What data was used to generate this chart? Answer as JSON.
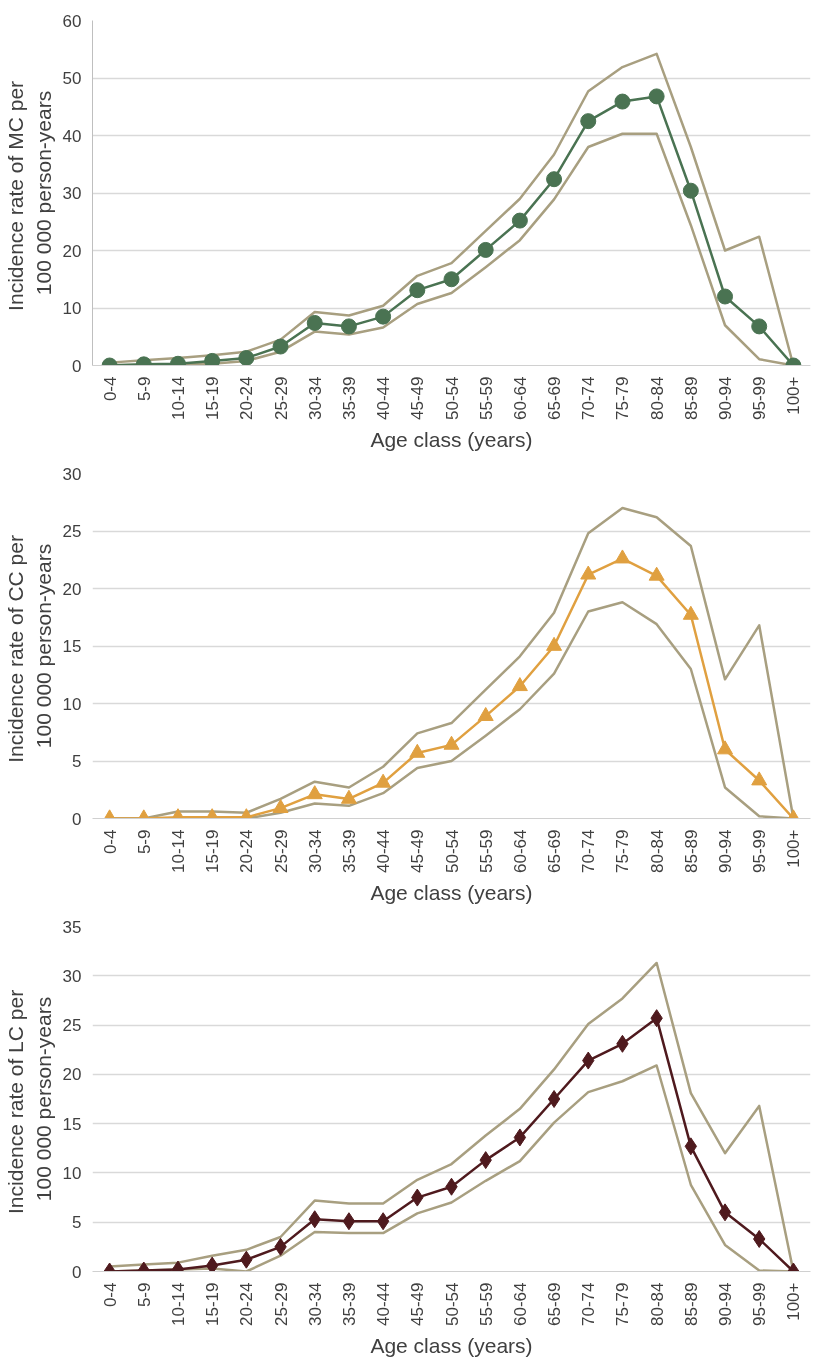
{
  "chart_data": [
    {
      "type": "line",
      "xlabel": "Age class (years)",
      "ylabel": "Incidence rate of MC  per\n100 000 person-years",
      "categories": [
        "0-4",
        "5-9",
        "10-14",
        "15-19",
        "20-24",
        "25-29",
        "30-34",
        "35-39",
        "40-44",
        "45-49",
        "50-54",
        "55-59",
        "60-64",
        "65-69",
        "70-74",
        "75-79",
        "80-84",
        "85-89",
        "90-94",
        "95-99",
        "100+"
      ],
      "ylim": [
        0,
        60
      ],
      "yticks": [
        0,
        10,
        20,
        30,
        40,
        50,
        60
      ],
      "grid": "y",
      "series": [
        {
          "color": "#a89f80",
          "marker": "none",
          "values": [
            0.5,
            0.9,
            1.3,
            1.8,
            2.4,
            4.5,
            9.3,
            8.7,
            10.4,
            15.6,
            17.8,
            23.4,
            29.0,
            36.7,
            47.7,
            51.9,
            54.2,
            38.0,
            20.0,
            22.4,
            0
          ]
        },
        {
          "color": "#a89f80",
          "marker": "none",
          "values": [
            0.1,
            0.1,
            0.2,
            0.3,
            0.8,
            2.4,
            5.9,
            5.4,
            6.6,
            10.7,
            12.6,
            17.1,
            21.8,
            28.9,
            38.0,
            40.3,
            40.3,
            24.4,
            7.0,
            1.1,
            0
          ]
        },
        {
          "color": "#4a7352",
          "marker": "circle",
          "values": [
            0,
            0.2,
            0.3,
            0.8,
            1.3,
            3.3,
            7.4,
            6.8,
            8.5,
            13.1,
            15.0,
            20.1,
            25.2,
            32.4,
            42.5,
            45.9,
            46.8,
            30.4,
            12.0,
            6.8,
            0
          ]
        }
      ]
    },
    {
      "type": "line",
      "xlabel": "Age class (years)",
      "ylabel": "Incidence rate of CC  per\n100 000 person-years",
      "categories": [
        "0-4",
        "5-9",
        "10-14",
        "15-19",
        "20-24",
        "25-29",
        "30-34",
        "35-39",
        "40-44",
        "45-49",
        "50-54",
        "55-59",
        "60-64",
        "65-69",
        "70-74",
        "75-79",
        "80-84",
        "85-89",
        "90-94",
        "95-99",
        "100+"
      ],
      "ylim": [
        0,
        30
      ],
      "yticks": [
        0,
        5,
        10,
        15,
        20,
        25,
        30
      ],
      "grid": "y",
      "series": [
        {
          "color": "#a89f80",
          "marker": "none",
          "values": [
            0,
            0,
            0.6,
            0.6,
            0.5,
            1.7,
            3.2,
            2.7,
            4.5,
            7.4,
            8.3,
            11.2,
            14.1,
            17.9,
            24.8,
            27.0,
            26.2,
            23.7,
            12.1,
            16.8,
            0
          ]
        },
        {
          "color": "#a89f80",
          "marker": "none",
          "values": [
            0,
            0,
            0,
            0,
            0,
            0.5,
            1.3,
            1.1,
            2.2,
            4.4,
            5.0,
            7.2,
            9.5,
            12.6,
            18.0,
            18.8,
            16.9,
            13.0,
            2.7,
            0.2,
            0
          ]
        },
        {
          "color": "#e0a040",
          "marker": "triangle",
          "values": [
            0,
            0,
            0.1,
            0.1,
            0.1,
            0.9,
            2.1,
            1.7,
            3.1,
            5.7,
            6.4,
            8.9,
            11.5,
            15.0,
            21.2,
            22.6,
            21.1,
            17.7,
            6.0,
            3.3,
            0
          ]
        }
      ]
    },
    {
      "type": "line",
      "xlabel": "Age class (years)",
      "ylabel": "Incidence rate of LC  per\n100 000 person-years",
      "categories": [
        "0-4",
        "5-9",
        "10-14",
        "15-19",
        "20-24",
        "25-29",
        "30-34",
        "35-39",
        "40-44",
        "45-49",
        "50-54",
        "55-59",
        "60-64",
        "65-69",
        "70-74",
        "75-79",
        "80-84",
        "85-89",
        "90-94",
        "95-99",
        "100+"
      ],
      "ylim": [
        0,
        35
      ],
      "yticks": [
        0,
        5,
        10,
        15,
        20,
        25,
        30,
        35
      ],
      "grid": "y",
      "series": [
        {
          "color": "#a89f80",
          "marker": "none",
          "values": [
            0.5,
            0.7,
            0.9,
            1.6,
            2.2,
            3.5,
            7.2,
            6.9,
            6.9,
            9.3,
            10.9,
            13.8,
            16.5,
            20.5,
            25.1,
            27.7,
            31.3,
            18.1,
            12.0,
            16.8,
            0
          ]
        },
        {
          "color": "#a89f80",
          "marker": "none",
          "values": [
            0,
            0.1,
            0.2,
            0.3,
            0,
            1.6,
            4.0,
            3.9,
            3.9,
            5.9,
            7.0,
            9.2,
            11.2,
            15.1,
            18.2,
            19.3,
            20.9,
            8.8,
            2.7,
            0.1,
            0
          ]
        },
        {
          "color": "#4f1a1e",
          "marker": "diamond",
          "values": [
            0,
            0.1,
            0.2,
            0.6,
            1.2,
            2.5,
            5.3,
            5.1,
            5.1,
            7.5,
            8.6,
            11.3,
            13.6,
            17.5,
            21.4,
            23.1,
            25.7,
            12.7,
            6.0,
            3.3,
            0
          ]
        }
      ]
    }
  ]
}
